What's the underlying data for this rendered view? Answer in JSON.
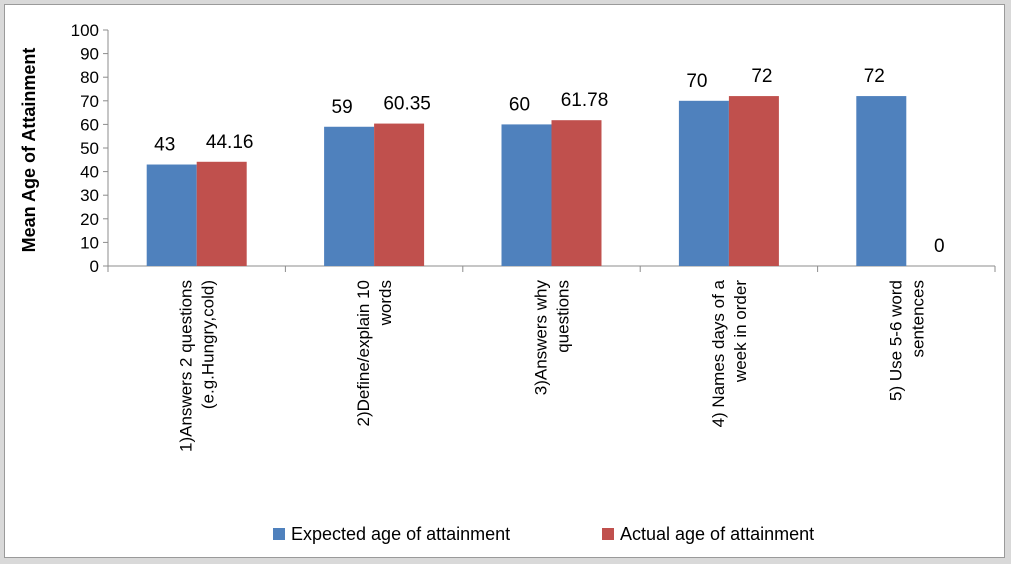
{
  "chart_data": {
    "type": "bar",
    "title": "",
    "xlabel": "",
    "ylabel": "Mean Age of Attainment",
    "ylim": [
      0,
      100
    ],
    "ytick_step": 10,
    "grid": false,
    "legend_position": "bottom",
    "categories": [
      [
        "1)Answers 2 questions",
        "(e.g.Hungry,cold)"
      ],
      [
        "2)Define/explain 10",
        "words"
      ],
      [
        "3)Answers why",
        "questions"
      ],
      [
        "4) Names days of a",
        "week in order"
      ],
      [
        "5) Use 5-6 word",
        "sentences"
      ]
    ],
    "series": [
      {
        "name": "Expected age of attainment",
        "color": "#4f81bd",
        "values": [
          43,
          59,
          60,
          70,
          72
        ],
        "labels": [
          "43",
          "59",
          "60",
          "70",
          "72"
        ]
      },
      {
        "name": "Actual age of attainment",
        "color": "#c0504d",
        "values": [
          44.16,
          60.35,
          61.78,
          72,
          0
        ],
        "labels": [
          "44.16",
          "60.35",
          "61.78",
          "72",
          "0"
        ]
      }
    ]
  }
}
